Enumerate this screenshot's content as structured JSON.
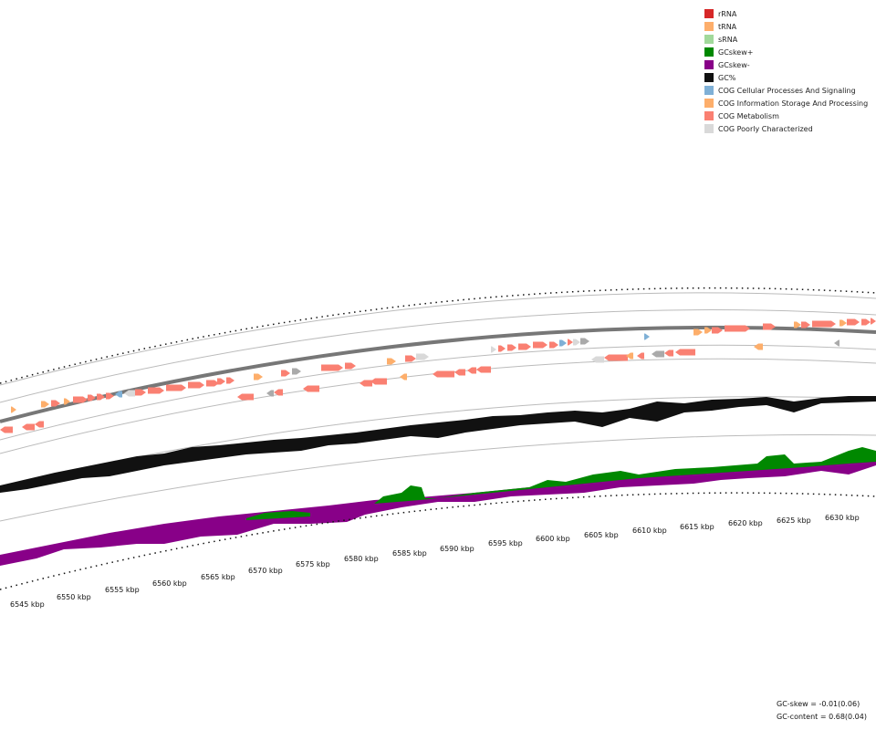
{
  "legend": [
    {
      "label": "rRNA",
      "color": "#d62728"
    },
    {
      "label": "tRNA",
      "color": "#fdae6b"
    },
    {
      "label": "sRNA",
      "color": "#a1d99b"
    },
    {
      "label": "GCskew+",
      "color": "#008800"
    },
    {
      "label": "GCskew-",
      "color": "#880088"
    },
    {
      "label": "GC%",
      "color": "#111111"
    },
    {
      "label": "COG Cellular Processes And Signaling",
      "color": "#7fb0d6"
    },
    {
      "label": "COG Information Storage And Processing",
      "color": "#fdae6b"
    },
    {
      "label": "COG Metabolism",
      "color": "#fa8072"
    },
    {
      "label": "COG Poorly Characterized",
      "color": "#d9d9d9"
    }
  ],
  "scale_labels": [
    "6545 kbp",
    "6550 kbp",
    "6555 kbp",
    "6560 kbp",
    "6565 kbp",
    "6570 kbp",
    "6575 kbp",
    "6580 kbp",
    "6585 kbp",
    "6590 kbp",
    "6595 kbp",
    "6600 kbp",
    "6605 kbp",
    "6610 kbp",
    "6615 kbp",
    "6620 kbp",
    "6625 kbp",
    "6630 kbp"
  ],
  "stats": {
    "gc_skew": "GC-skew = -0.01(0.06)",
    "gc_content": "GC-content = 0.68(0.04)"
  },
  "colors": {
    "backbone": "#777777",
    "ring_line": "#bbbbbb",
    "gc_content": "#111111",
    "skew_pos": "#008800",
    "skew_neg": "#880088"
  }
}
